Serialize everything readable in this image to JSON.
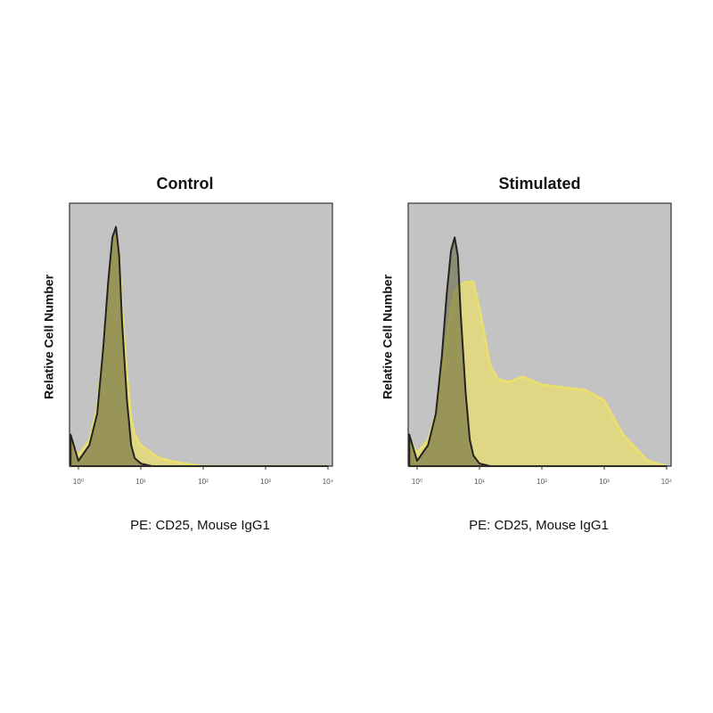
{
  "chart_data": [
    {
      "type": "area",
      "title": "Control",
      "xlabel": "PE: CD25, Mouse IgG1",
      "ylabel": "Relative Cell Number",
      "log_x": true,
      "background": "#c3c3c3",
      "x": [
        0.75,
        1,
        1.5,
        2,
        2.5,
        3,
        3.5,
        4,
        4.5,
        5,
        6,
        7,
        8,
        10,
        15,
        20,
        30,
        50,
        100,
        200,
        500,
        1000,
        2000,
        5000,
        10000
      ],
      "xlim": [
        0.72,
        11800
      ],
      "xticks": [
        {
          "value": 1,
          "label": "10⁰"
        },
        {
          "value": 10,
          "label": "10¹"
        },
        {
          "value": 100,
          "label": "10²"
        },
        {
          "value": 1000,
          "label": "10³"
        },
        {
          "value": 10000,
          "label": "10⁴"
        }
      ],
      "ylim": [
        0,
        100
      ],
      "series": [
        {
          "color": "#ebe06a",
          "values": [
            10,
            4,
            10,
            22,
            45,
            68,
            85,
            88,
            80,
            60,
            35,
            18,
            12,
            8,
            5,
            3,
            2,
            1,
            0,
            0,
            0,
            0,
            0,
            0,
            0
          ]
        },
        {
          "color": "#222222",
          "values": [
            12,
            2,
            8,
            20,
            45,
            70,
            87,
            91,
            80,
            55,
            25,
            8,
            3,
            1,
            0,
            0,
            0,
            0,
            0,
            0,
            0,
            0,
            0,
            0,
            0
          ]
        }
      ]
    },
    {
      "type": "area",
      "title": "Stimulated",
      "xlabel": "PE: CD25, Mouse IgG1",
      "ylabel": "Relative Cell Number",
      "log_x": true,
      "background": "#c3c3c3",
      "x": [
        0.75,
        1,
        1.5,
        2,
        2.5,
        3,
        3.5,
        4,
        4.5,
        5,
        6,
        7,
        8,
        10,
        15,
        20,
        30,
        50,
        100,
        200,
        500,
        1000,
        2000,
        5000,
        10000
      ],
      "xlim": [
        0.72,
        11800
      ],
      "xticks": [
        {
          "value": 1,
          "label": "10⁰"
        },
        {
          "value": 10,
          "label": "10¹"
        },
        {
          "value": 100,
          "label": "10²"
        },
        {
          "value": 1000,
          "label": "10³"
        },
        {
          "value": 10000,
          "label": "10⁴"
        }
      ],
      "ylim": [
        0,
        100
      ],
      "series": [
        {
          "color": "#ebe06a",
          "values": [
            10,
            5,
            10,
            20,
            35,
            50,
            60,
            66,
            68,
            69,
            70,
            70,
            70,
            60,
            38,
            33,
            32,
            34,
            31,
            30,
            29,
            25,
            12,
            2,
            0
          ]
        },
        {
          "color": "#222222",
          "values": [
            12,
            2,
            8,
            20,
            42,
            66,
            82,
            87,
            80,
            58,
            28,
            10,
            4,
            1,
            0,
            0,
            0,
            0,
            0,
            0,
            0,
            0,
            0,
            0,
            0
          ]
        }
      ]
    }
  ]
}
